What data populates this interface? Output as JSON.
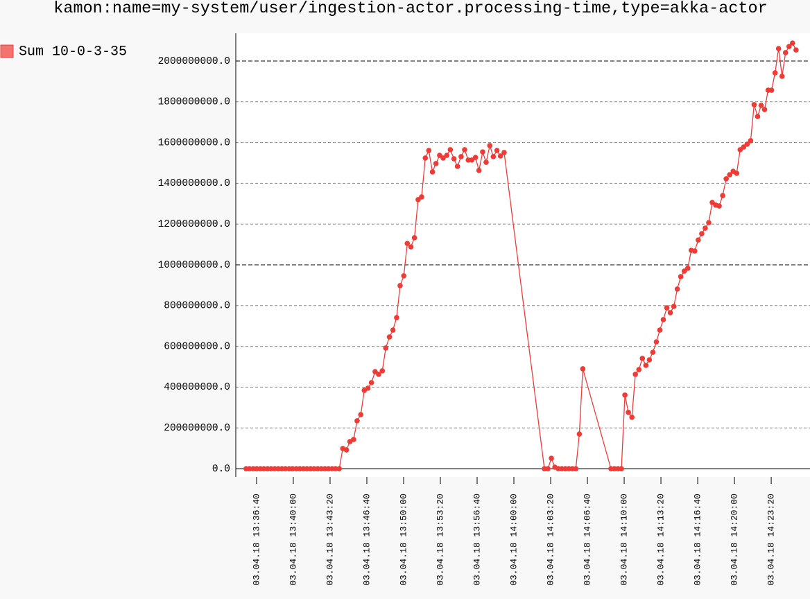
{
  "chart_data": {
    "type": "line",
    "title": "kamon:name=my-system/user/ingestion-actor.processing-time,type=akka-actor",
    "x": [
      "03.04.18 13:35:43",
      "03.04.18 13:36:02",
      "03.04.18 13:36:22",
      "03.04.18 13:36:41",
      "03.04.18 13:37:01",
      "03.04.18 13:37:20",
      "03.04.18 13:37:40",
      "03.04.18 13:37:59",
      "03.04.18 13:38:19",
      "03.04.18 13:38:38",
      "03.04.18 13:38:58",
      "03.04.18 13:39:17",
      "03.04.18 13:39:37",
      "03.04.18 13:39:56",
      "03.04.18 13:40:16",
      "03.04.18 13:40:35",
      "03.04.18 13:40:55",
      "03.04.18 13:41:14",
      "03.04.18 13:41:34",
      "03.04.18 13:41:53",
      "03.04.18 13:42:13",
      "03.04.18 13:42:32",
      "03.04.18 13:42:52",
      "03.04.18 13:43:11",
      "03.04.18 13:43:31",
      "03.04.18 13:43:50",
      "03.04.18 13:44:10",
      "03.04.18 13:44:29",
      "03.04.18 13:44:49",
      "03.04.18 13:45:08",
      "03.04.18 13:45:28",
      "03.04.18 13:45:47",
      "03.04.18 13:46:07",
      "03.04.18 13:46:26",
      "03.04.18 13:46:46",
      "03.04.18 13:47:05",
      "03.04.18 13:47:25",
      "03.04.18 13:47:44",
      "03.04.18 13:48:04",
      "03.04.18 13:48:23",
      "03.04.18 13:48:43",
      "03.04.18 13:49:02",
      "03.04.18 13:49:22",
      "03.04.18 13:49:41",
      "03.04.18 13:50:01",
      "03.04.18 13:50:20",
      "03.04.18 13:50:40",
      "03.04.18 13:50:59",
      "03.04.18 13:51:19",
      "03.04.18 13:51:38",
      "03.04.18 13:51:58",
      "03.04.18 13:52:17",
      "03.04.18 13:52:37",
      "03.04.18 13:52:56",
      "03.04.18 13:53:16",
      "03.04.18 13:53:35",
      "03.04.18 13:53:55",
      "03.04.18 13:54:14",
      "03.04.18 13:54:34",
      "03.04.18 13:54:53",
      "03.04.18 13:55:13",
      "03.04.18 13:55:32",
      "03.04.18 13:55:52",
      "03.04.18 13:56:11",
      "03.04.18 13:56:31",
      "03.04.18 13:56:50",
      "03.04.18 13:57:10",
      "03.04.18 13:57:29",
      "03.04.18 13:57:49",
      "03.04.18 13:58:08",
      "03.04.18 13:58:28",
      "03.04.18 13:58:47",
      "03.04.18 13:59:07",
      "03.04.18 14:02:46",
      "03.04.18 14:03:05",
      "03.04.18 14:03:24",
      "03.04.18 14:03:43",
      "03.04.18 14:04:02",
      "03.04.18 14:04:21",
      "03.04.18 14:04:40",
      "03.04.18 14:04:59",
      "03.04.18 14:05:18",
      "03.04.18 14:05:37",
      "03.04.18 14:05:56",
      "03.04.18 14:06:15",
      "03.04.18 14:08:48",
      "03.04.18 14:09:07",
      "03.04.18 14:09:26",
      "03.04.18 14:09:45",
      "03.04.18 14:10:04",
      "03.04.18 14:10:23",
      "03.04.18 14:10:42",
      "03.04.18 14:11:01",
      "03.04.18 14:11:20",
      "03.04.18 14:11:39",
      "03.04.18 14:11:58",
      "03.04.18 14:12:17",
      "03.04.18 14:12:36",
      "03.04.18 14:12:55",
      "03.04.18 14:13:14",
      "03.04.18 14:13:33",
      "03.04.18 14:13:52",
      "03.04.18 14:14:11",
      "03.04.18 14:14:30",
      "03.04.18 14:14:49",
      "03.04.18 14:15:08",
      "03.04.18 14:15:27",
      "03.04.18 14:15:46",
      "03.04.18 14:16:05",
      "03.04.18 14:16:24",
      "03.04.18 14:16:43",
      "03.04.18 14:17:02",
      "03.04.18 14:17:21",
      "03.04.18 14:17:40",
      "03.04.18 14:17:59",
      "03.04.18 14:18:18",
      "03.04.18 14:18:37",
      "03.04.18 14:18:56",
      "03.04.18 14:19:15",
      "03.04.18 14:19:34",
      "03.04.18 14:19:53",
      "03.04.18 14:20:12",
      "03.04.18 14:20:31",
      "03.04.18 14:20:50",
      "03.04.18 14:21:09",
      "03.04.18 14:21:28",
      "03.04.18 14:21:47",
      "03.04.18 14:22:06",
      "03.04.18 14:22:25",
      "03.04.18 14:22:44",
      "03.04.18 14:23:03",
      "03.04.18 14:23:22",
      "03.04.18 14:23:41",
      "03.04.18 14:24:00",
      "03.04.18 14:24:19",
      "03.04.18 14:24:38",
      "03.04.18 14:24:57",
      "03.04.18 14:25:16",
      "03.04.18 14:25:35"
    ],
    "series": [
      {
        "name": "Sum 10-0-3-35",
        "color": "#ef3b36",
        "values": [
          0,
          0,
          0,
          0,
          0,
          0,
          0,
          0,
          0,
          0,
          0,
          0,
          0,
          0,
          0,
          0,
          0,
          0,
          0,
          0,
          0,
          0,
          0,
          0,
          0,
          0,
          0,
          99000000,
          92000000,
          133000000,
          143000000,
          235000000,
          265000000,
          384000000,
          395000000,
          422000000,
          476000000,
          463000000,
          480000000,
          592000000,
          646000000,
          680000000,
          741000000,
          898000000,
          946000000,
          1105000000,
          1088000000,
          1133000000,
          1320000000,
          1333000000,
          1524000000,
          1561000000,
          1456000000,
          1497000000,
          1537000000,
          1524000000,
          1537000000,
          1565000000,
          1520000000,
          1483000000,
          1531000000,
          1565000000,
          1514000000,
          1514000000,
          1527000000,
          1463000000,
          1554000000,
          1503000000,
          1585000000,
          1531000000,
          1561000000,
          1534000000,
          1551000000,
          0,
          0,
          51000000,
          7000000,
          0,
          0,
          0,
          0,
          0,
          0,
          170000000,
          490000000,
          0,
          0,
          0,
          0,
          361000000,
          276000000,
          252000000,
          463000000,
          486000000,
          541000000,
          507000000,
          534000000,
          571000000,
          622000000,
          680000000,
          731000000,
          789000000,
          765000000,
          796000000,
          881000000,
          942000000,
          969000000,
          983000000,
          1071000000,
          1068000000,
          1122000000,
          1153000000,
          1180000000,
          1207000000,
          1306000000,
          1293000000,
          1289000000,
          1340000000,
          1422000000,
          1442000000,
          1459000000,
          1449000000,
          1565000000,
          1578000000,
          1592000000,
          1609000000,
          1786000000,
          1728000000,
          1782000000,
          1762000000,
          1857000000,
          1857000000,
          1942000000,
          2061000000,
          1925000000,
          2041000000,
          2071000000,
          2088000000,
          2054000000
        ]
      }
    ],
    "xlim": [
      "03.04.18 13:34:47",
      "03.04.18 14:26:51"
    ],
    "xticks": [
      "03.04.18 13:36:40",
      "03.04.18 13:40:00",
      "03.04.18 13:43:20",
      "03.04.18 13:46:40",
      "03.04.18 13:50:00",
      "03.04.18 13:53:20",
      "03.04.18 13:56:40",
      "03.04.18 14:00:00",
      "03.04.18 14:03:20",
      "03.04.18 14:06:40",
      "03.04.18 14:10:00",
      "03.04.18 14:13:20",
      "03.04.18 14:16:40",
      "03.04.18 14:20:00",
      "03.04.18 14:23:20"
    ],
    "ylim": [
      -40800000,
      2136000000
    ],
    "yticks": [
      {
        "value": 0,
        "label": "0.0"
      },
      {
        "value": 200000000,
        "label": "200000000.0"
      },
      {
        "value": 400000000,
        "label": "400000000.0"
      },
      {
        "value": 600000000,
        "label": "600000000.0"
      },
      {
        "value": 800000000,
        "label": "800000000.0"
      },
      {
        "value": 1000000000,
        "label": "1000000000.0"
      },
      {
        "value": 1200000000,
        "label": "1200000000.0"
      },
      {
        "value": 1400000000,
        "label": "1400000000.0"
      },
      {
        "value": 1600000000,
        "label": "1600000000.0"
      },
      {
        "value": 1800000000,
        "label": "1800000000.0"
      },
      {
        "value": 2000000000,
        "label": "2000000000.0"
      }
    ],
    "grid": true,
    "legend": "top-left"
  }
}
